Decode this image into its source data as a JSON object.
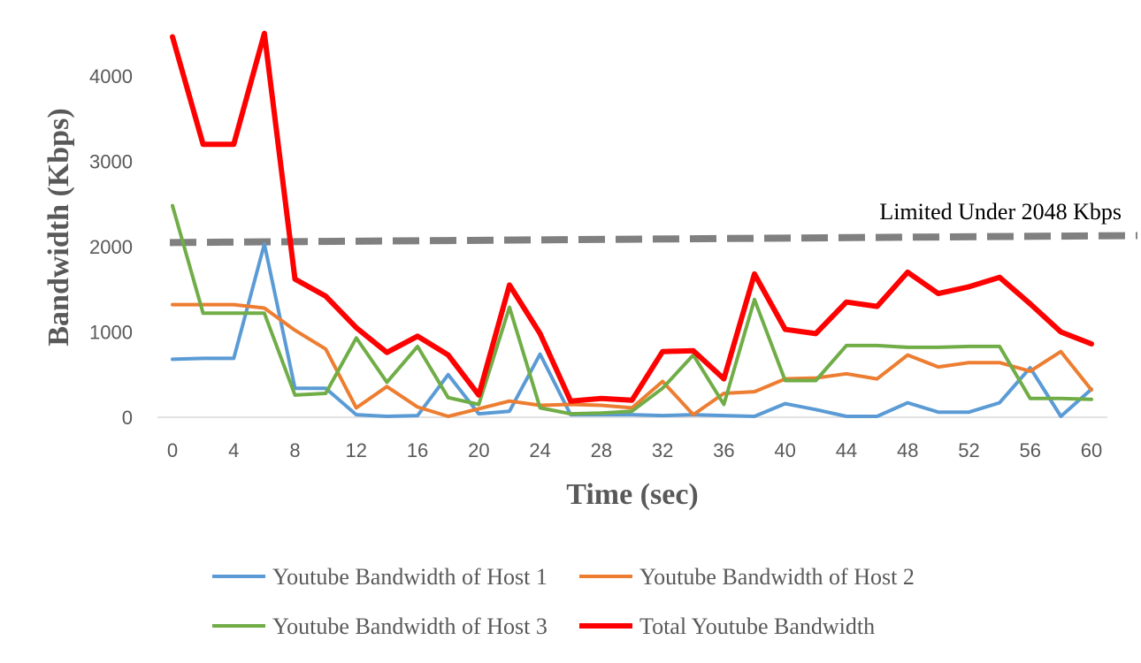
{
  "chart_data": {
    "type": "line",
    "title": "",
    "xlabel": "Time (sec)",
    "ylabel": "Bandwidth (Kbps)",
    "xlim": [
      0,
      60
    ],
    "ylim": [
      0,
      4500
    ],
    "xticks": [
      0,
      4,
      8,
      12,
      16,
      20,
      24,
      28,
      32,
      36,
      40,
      44,
      48,
      52,
      56,
      60
    ],
    "yticks": [
      0,
      1000,
      2000,
      3000,
      4000
    ],
    "grid": "horizontal baseline only",
    "legend_position": "bottom",
    "x": [
      0,
      2,
      4,
      6,
      8,
      10,
      12,
      14,
      16,
      18,
      20,
      22,
      24,
      26,
      28,
      30,
      32,
      34,
      36,
      38,
      40,
      42,
      44,
      46,
      48,
      50,
      52,
      54,
      56,
      58,
      60
    ],
    "series": [
      {
        "name": "Youtube Bandwidth of Host 1",
        "color": "#5B9BD5",
        "stroke": "thin",
        "values": [
          680,
          690,
          690,
          2030,
          340,
          340,
          30,
          10,
          20,
          500,
          40,
          70,
          740,
          30,
          30,
          30,
          20,
          30,
          20,
          10,
          160,
          90,
          10,
          10,
          170,
          60,
          60,
          170,
          580,
          10,
          330
        ]
      },
      {
        "name": "Youtube Bandwidth of Host 2",
        "color": "#ED7D31",
        "stroke": "thin",
        "values": [
          1320,
          1320,
          1320,
          1280,
          1020,
          800,
          110,
          360,
          120,
          10,
          100,
          190,
          140,
          150,
          140,
          110,
          420,
          30,
          280,
          300,
          450,
          460,
          510,
          450,
          730,
          590,
          640,
          640,
          540,
          770,
          320
        ]
      },
      {
        "name": "Youtube Bandwidth of Host 3",
        "color": "#70AD47",
        "stroke": "thin",
        "values": [
          2480,
          1220,
          1220,
          1220,
          260,
          280,
          930,
          410,
          830,
          230,
          150,
          1290,
          110,
          40,
          50,
          70,
          340,
          730,
          150,
          1380,
          430,
          430,
          840,
          840,
          820,
          820,
          830,
          830,
          220,
          220,
          210
        ]
      },
      {
        "name": "Total Youtube Bandwidth",
        "color": "#FF0000",
        "stroke": "thick",
        "values": [
          4460,
          3200,
          3200,
          4500,
          1620,
          1420,
          1050,
          760,
          950,
          730,
          260,
          1550,
          980,
          190,
          220,
          200,
          770,
          780,
          450,
          1680,
          1030,
          980,
          1350,
          1300,
          1700,
          1450,
          1530,
          1640,
          1330,
          1000,
          860
        ]
      }
    ],
    "reference_line": {
      "label": "Limited Under 2048 Kbps",
      "color": "#808080",
      "style": "dashed",
      "x": [
        0,
        63
      ],
      "y": [
        2048,
        2130
      ]
    }
  }
}
